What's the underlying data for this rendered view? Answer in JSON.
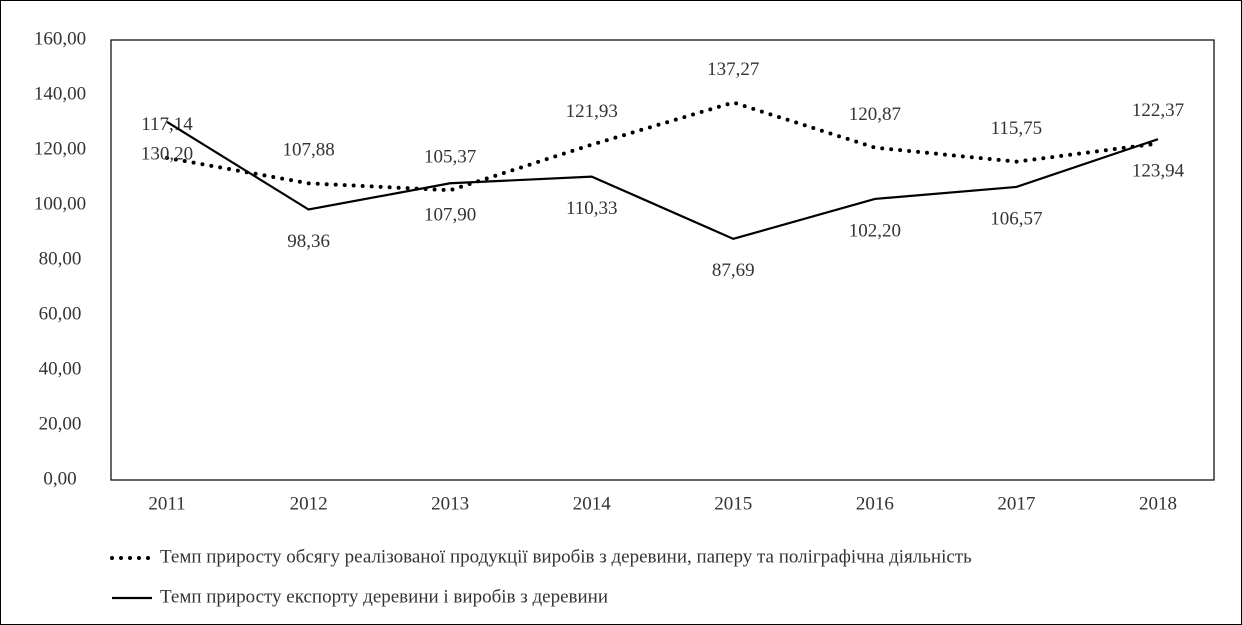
{
  "chart_data": {
    "type": "line",
    "categories": [
      "2011",
      "2012",
      "2013",
      "2014",
      "2015",
      "2016",
      "2017",
      "2018"
    ],
    "series": [
      {
        "name": "Темп приросту обсягу реалізованої продукції виробів з деревини, паперу та поліграфічна діяльність",
        "color": "#000000",
        "style": "dotted",
        "values": [
          117.14,
          107.88,
          105.37,
          121.93,
          137.27,
          120.87,
          115.75,
          122.37
        ],
        "value_labels": [
          "117,14",
          "107,88",
          "105,37",
          "121,93",
          "137,27",
          "120,87",
          "115,75",
          "122,37"
        ]
      },
      {
        "name": "Темп приросту експорту деревини і виробів з деревини",
        "color": "#000000",
        "style": "solid",
        "values": [
          130.2,
          98.36,
          107.9,
          110.33,
          87.69,
          102.2,
          106.57,
          123.94
        ],
        "value_labels": [
          "130,20",
          "98,36",
          "107,90",
          "110,33",
          "87,69",
          "102,20",
          "106,57",
          "123,94"
        ]
      }
    ],
    "ylim": [
      0,
      160
    ],
    "yticks": [
      {
        "value": 0,
        "label": "0,00"
      },
      {
        "value": 20,
        "label": "20,00"
      },
      {
        "value": 40,
        "label": "40,00"
      },
      {
        "value": 60,
        "label": "60,00"
      },
      {
        "value": 80,
        "label": "80,00"
      },
      {
        "value": 100,
        "label": "100,00"
      },
      {
        "value": 120,
        "label": "120,00"
      },
      {
        "value": 140,
        "label": "140,00"
      },
      {
        "value": 160,
        "label": "160,00"
      }
    ],
    "grid": false,
    "legend": "bottom"
  }
}
